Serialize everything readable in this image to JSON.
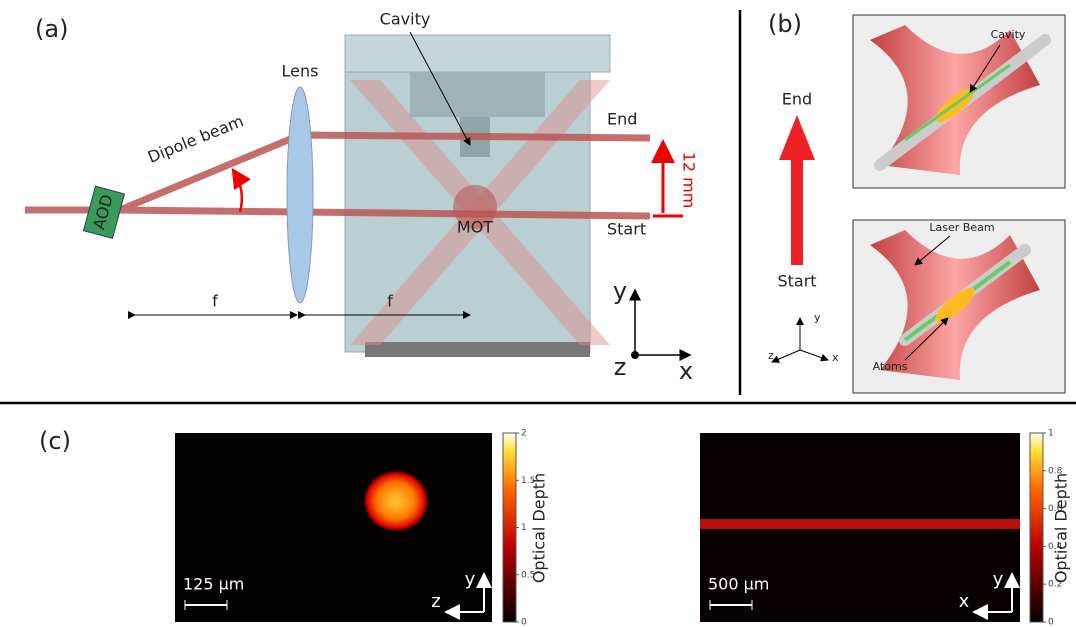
{
  "panel_a": {
    "label": "(a)",
    "cavity": "Cavity",
    "lens": "Lens",
    "dipole_beam": "Dipole beam",
    "aod": "AOD",
    "end": "End",
    "start": "Start",
    "shift": "12 mm",
    "mot": "MOT",
    "focal": [
      "f",
      "f"
    ],
    "axes": [
      "y",
      "z",
      "x"
    ]
  },
  "panel_b": {
    "label": "(b)",
    "end": "End",
    "start": "Start",
    "callouts": [
      "Cavity",
      "Laser Beam",
      "Atoms"
    ],
    "axes": [
      "y",
      "z",
      "x"
    ]
  },
  "panel_c": {
    "label": "(c)",
    "images": [
      {
        "colorbar_label": "Optical Depth",
        "colorbar_ticks": [
          0,
          0.5,
          1,
          1.5,
          2
        ],
        "scale_bar": "125 µm",
        "axes": [
          "y",
          "z"
        ]
      },
      {
        "colorbar_label": "Optical Depth",
        "colorbar_ticks": [
          0,
          0.2,
          0.4,
          0.6,
          0.8,
          1
        ],
        "scale_bar": "500 µm",
        "axes": [
          "y",
          "x"
        ]
      }
    ]
  }
}
